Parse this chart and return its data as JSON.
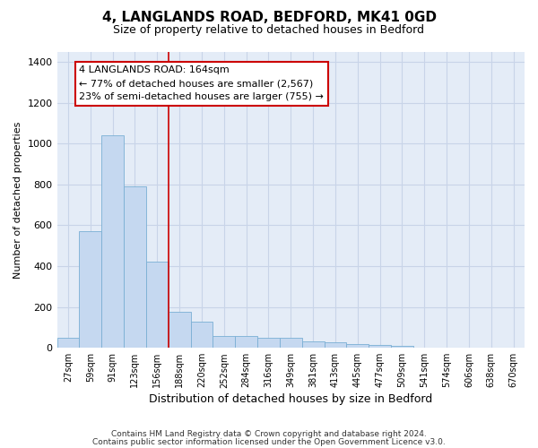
{
  "title_line1": "4, LANGLANDS ROAD, BEDFORD, MK41 0GD",
  "title_line2": "Size of property relative to detached houses in Bedford",
  "xlabel": "Distribution of detached houses by size in Bedford",
  "ylabel": "Number of detached properties",
  "categories": [
    "27sqm",
    "59sqm",
    "91sqm",
    "123sqm",
    "156sqm",
    "188sqm",
    "220sqm",
    "252sqm",
    "284sqm",
    "316sqm",
    "349sqm",
    "381sqm",
    "413sqm",
    "445sqm",
    "477sqm",
    "509sqm",
    "541sqm",
    "574sqm",
    "606sqm",
    "638sqm",
    "670sqm"
  ],
  "values": [
    47,
    572,
    1040,
    790,
    420,
    178,
    128,
    60,
    60,
    47,
    47,
    30,
    28,
    20,
    15,
    10,
    0,
    0,
    0,
    0,
    0
  ],
  "bar_color": "#c5d8f0",
  "bar_edge_color": "#7aafd4",
  "vline_x": 4.5,
  "vline_color": "#cc0000",
  "annotation_text": "4 LANGLANDS ROAD: 164sqm\n← 77% of detached houses are smaller (2,567)\n23% of semi-detached houses are larger (755) →",
  "annotation_box_facecolor": "#ffffff",
  "annotation_box_edgecolor": "#cc0000",
  "ylim": [
    0,
    1450
  ],
  "yticks": [
    0,
    200,
    400,
    600,
    800,
    1000,
    1200,
    1400
  ],
  "grid_color": "#c8d4e8",
  "bg_color": "#e4ecf7",
  "footer_line1": "Contains HM Land Registry data © Crown copyright and database right 2024.",
  "footer_line2": "Contains public sector information licensed under the Open Government Licence v3.0."
}
